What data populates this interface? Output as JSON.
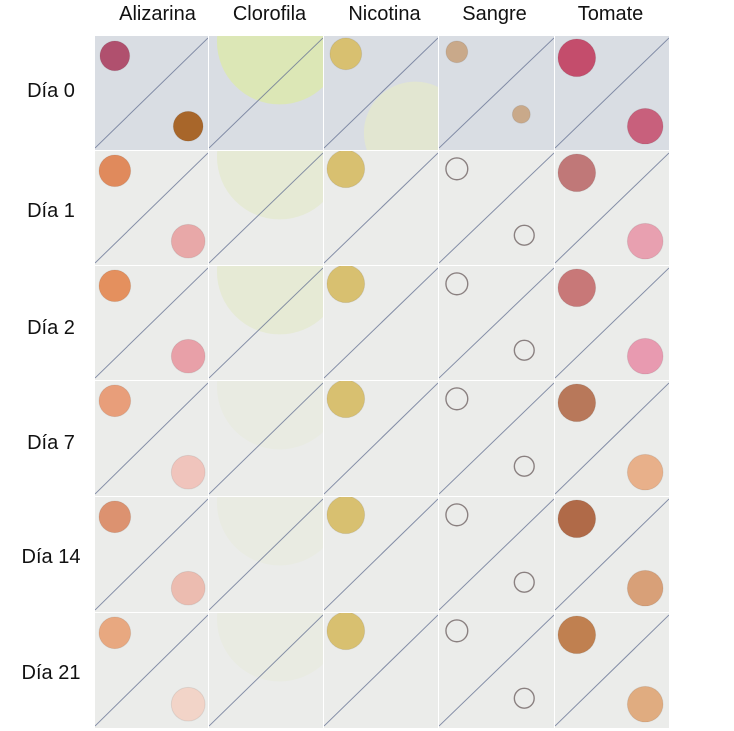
{
  "columns": [
    "Alizarina",
    "Clorofila",
    "Nicotina",
    "Sangre",
    "Tomate"
  ],
  "rows": [
    "Día 0",
    "Día 1",
    "Día 2",
    "Día 7",
    "Día 14",
    "Día 21"
  ],
  "colors": {
    "background_day0": "#d9dde3",
    "background_later": "#ebecea",
    "diagonal_line": "#6a7696",
    "alizarina": [
      "#b0506e",
      "#e08a5c",
      "#e4905e",
      "#e89e7a",
      "#dc9270",
      "#e8a880"
    ],
    "alizarina_second": [
      "#a8662a",
      "#e8a8a8",
      "#e8a0a8",
      "#f0c4bc",
      "#ecbcb0",
      "#f2d4c8"
    ],
    "clorofila": "#dce8b0",
    "nicotina": "#d8c070",
    "sangre": "#c9a98a",
    "tomate": [
      "#c44d6c",
      "#c07878",
      "#c87878",
      "#b8785a",
      "#b06a48",
      "#c08050"
    ],
    "tomate_second": [
      "#c8607c",
      "#e8a0b0",
      "#e89ab0",
      "#e8b08a",
      "#d8a078",
      "#e0ac80"
    ]
  }
}
